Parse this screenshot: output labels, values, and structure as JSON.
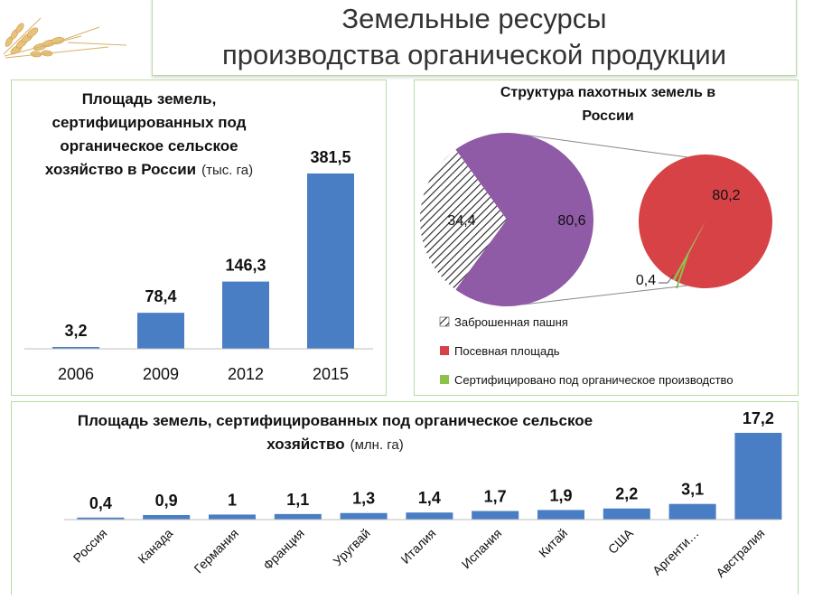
{
  "header": {
    "title_line1": "Земельные ресурсы",
    "title_line2": "производства органической продукции"
  },
  "colors": {
    "bar": "#4a7ec4",
    "abandoned": "#ffffff",
    "sown": "#d64245",
    "organic": "#8bc34a",
    "purple": "#8f5aa6",
    "panel_border": "#b6dca0"
  },
  "chart_data": [
    {
      "type": "bar",
      "title_lines": [
        "Площадь земель,",
        "сертифицированных под",
        "органическое сельское"
      ],
      "title_last": "хозяйство в России",
      "unit": "(тыс. га)",
      "categories": [
        "2006",
        "2009",
        "2012",
        "2015"
      ],
      "values": [
        3.2,
        78.4,
        146.3,
        381.5
      ],
      "value_labels": [
        "3,2",
        "78,4",
        "146,3",
        "381,5"
      ],
      "ylim": [
        0,
        381.5
      ]
    },
    {
      "type": "pie",
      "title_lines": [
        "Структура пахотных земель в",
        "России"
      ],
      "main_pie": {
        "slices": [
          {
            "name": "Заброшенная пашня",
            "value": 34.4,
            "label": "34,4"
          },
          {
            "name": "Посевная площадь",
            "value": 80.6,
            "label": "80,6"
          }
        ]
      },
      "breakdown_pie": {
        "slices": [
          {
            "name": "Посевная площадь",
            "value": 80.2,
            "label": "80,2"
          },
          {
            "name": "Сертифицировано под органическое производство",
            "value": 0.4,
            "label": "0,4"
          }
        ]
      },
      "legend": [
        "Заброшенная пашня",
        "Посевная площадь",
        "Сертифицировано под органическое производство"
      ]
    },
    {
      "type": "bar",
      "title_line1": "Площадь земель, сертифицированных под органическое сельское",
      "title_line2": "хозяйство",
      "unit": "(млн. га)",
      "categories": [
        "Россия",
        "Канада",
        "Германия",
        "Франция",
        "Уругвай",
        "Италия",
        "Испания",
        "Китай",
        "США",
        "Аргенти…",
        "Австралия"
      ],
      "values": [
        0.4,
        0.9,
        1,
        1.1,
        1.3,
        1.4,
        1.7,
        1.9,
        2.2,
        3.1,
        17.2
      ],
      "value_labels": [
        "0,4",
        "0,9",
        "1",
        "1,1",
        "1,3",
        "1,4",
        "1,7",
        "1,9",
        "2,2",
        "3,1",
        "17,2"
      ],
      "ylim": [
        0,
        17.2
      ]
    }
  ]
}
